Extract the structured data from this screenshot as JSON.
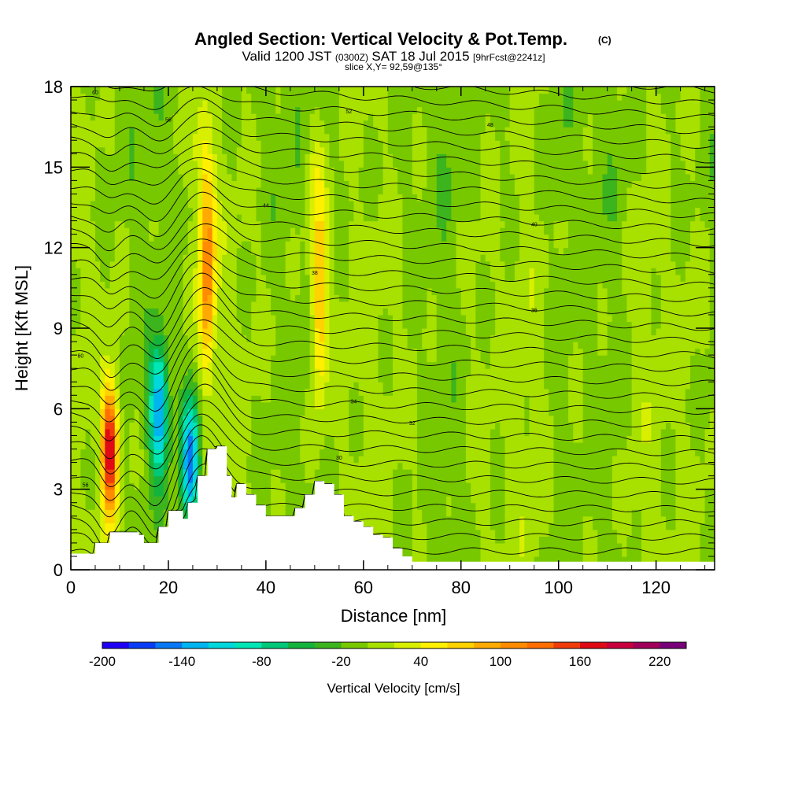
{
  "chart_data": {
    "type": "heatmap",
    "title": "Angled Section: Vertical Velocity & Pot.Temp.",
    "title_mark": "(C)",
    "subtitle": {
      "part1": "Valid 1200 JST",
      "part2": "(0300Z)",
      "part3": "SAT 18 Jul 2015",
      "part4": "[9hrFcst@2241z]"
    },
    "slice_label": "slice X,Y= 92,59@135°",
    "xlabel": "Distance [nm]",
    "ylabel": "Height [Kft MSL]",
    "xlim": [
      0,
      132
    ],
    "ylim": [
      0,
      18
    ],
    "x_ticks": [
      0,
      20,
      40,
      60,
      80,
      100,
      120
    ],
    "y_ticks": [
      0,
      3,
      6,
      9,
      12,
      15,
      18
    ],
    "colorbar": {
      "label": "Vertical Velocity [cm/s]",
      "min": -200,
      "max": 240,
      "step": 20,
      "tick_labels": [
        "-200",
        "-140",
        "-80",
        "-20",
        "40",
        "100",
        "160",
        "220"
      ],
      "colors": [
        "#1f00f5",
        "#0a3cf5",
        "#0a78f5",
        "#00b4f0",
        "#00d8dc",
        "#00e6b4",
        "#00c878",
        "#14b43c",
        "#3cb41e",
        "#78c800",
        "#a8e000",
        "#d8f000",
        "#fff000",
        "#ffd200",
        "#ffaa00",
        "#ff8c00",
        "#ff6e00",
        "#f03c0a",
        "#e00a14",
        "#c8003c",
        "#a0005a",
        "#780078"
      ]
    },
    "features": [
      {
        "name": "updraft",
        "x_nm": 8,
        "z_kft": 4.5,
        "peak_cm_s": 190
      },
      {
        "name": "downdraft",
        "x_nm": 18,
        "z_kft": 6,
        "peak_cm_s": -140
      },
      {
        "name": "downdraft",
        "x_nm": 24.5,
        "z_kft": 4,
        "peak_cm_s": -150
      },
      {
        "name": "updraft",
        "x_nm": 28,
        "z_kft": 11,
        "peak_cm_s": 110
      },
      {
        "name": "updraft",
        "x_nm": 51,
        "z_kft": 10,
        "peak_cm_s": 90
      }
    ],
    "terrain_nm_kft": [
      [
        0,
        0.6
      ],
      [
        5,
        1.0
      ],
      [
        8,
        1.4
      ],
      [
        12,
        1.4
      ],
      [
        14,
        1.3
      ],
      [
        15,
        1.0
      ],
      [
        18,
        1.6
      ],
      [
        20,
        2.2
      ],
      [
        22,
        2.2
      ],
      [
        23,
        1.9
      ],
      [
        24,
        2.5
      ],
      [
        26,
        3.5
      ],
      [
        28,
        4.5
      ],
      [
        30,
        4.6
      ],
      [
        32,
        3.5
      ],
      [
        33,
        2.7
      ],
      [
        34,
        3.2
      ],
      [
        36,
        2.8
      ],
      [
        38,
        2.4
      ],
      [
        40,
        2.0
      ],
      [
        42,
        2.0
      ],
      [
        44,
        2.0
      ],
      [
        46,
        2.3
      ],
      [
        48,
        2.8
      ],
      [
        50,
        3.3
      ],
      [
        52,
        3.2
      ],
      [
        54,
        2.8
      ],
      [
        56,
        2.0
      ],
      [
        58,
        1.8
      ],
      [
        60,
        1.6
      ],
      [
        62,
        1.3
      ],
      [
        64,
        1.2
      ],
      [
        66,
        0.8
      ],
      [
        68,
        0.5
      ],
      [
        70,
        0.3
      ],
      [
        132,
        0.3
      ]
    ],
    "theta_contours": {
      "units": "C",
      "visible_labels": [
        "60",
        "56",
        "52",
        "48",
        "44",
        "40",
        "38",
        "36",
        "34",
        "32",
        "30"
      ]
    }
  }
}
